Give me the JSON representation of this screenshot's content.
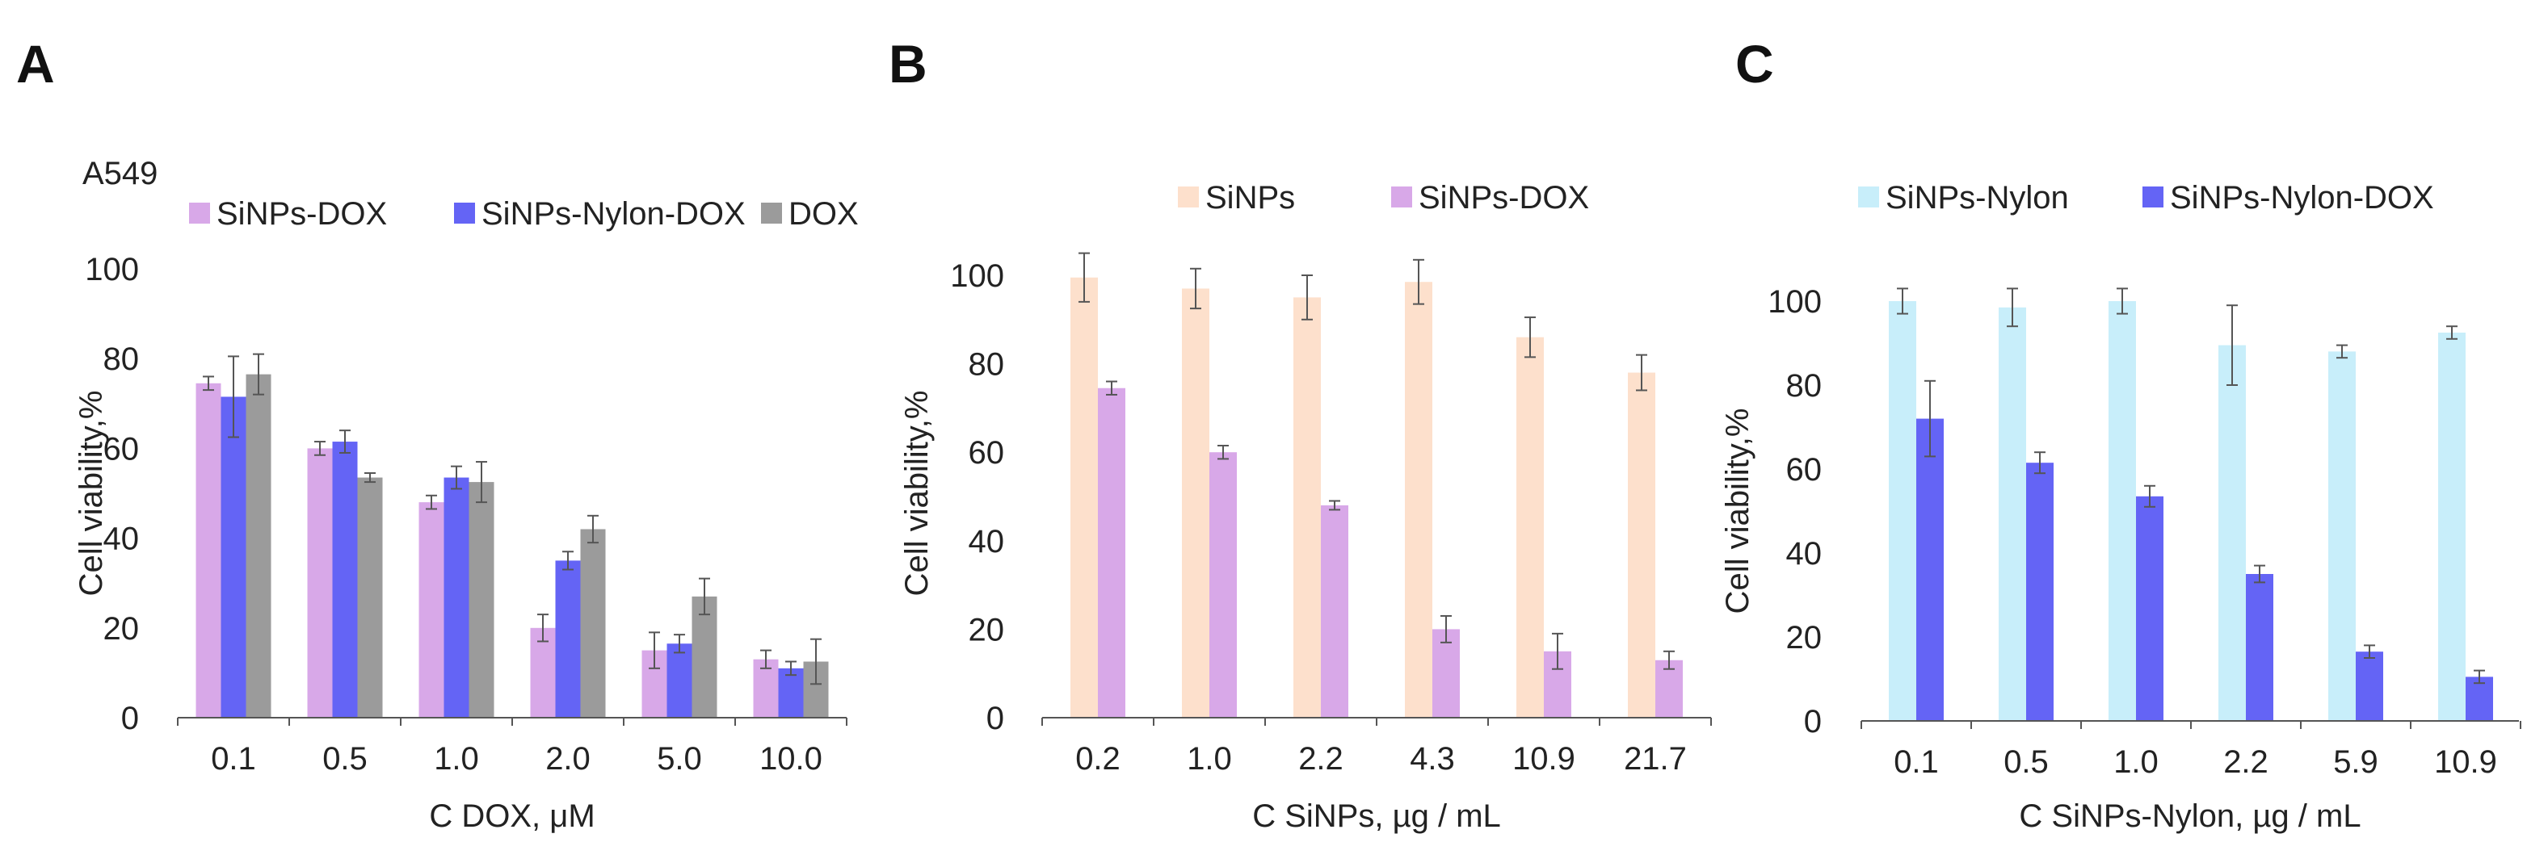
{
  "chart_data": [
    {
      "type": "bar",
      "panel_letter": "A",
      "annotation": "A549",
      "categories": [
        "0.1",
        "0.5",
        "1.0",
        "2.0",
        "5.0",
        "10.0"
      ],
      "series": [
        {
          "name": "SiNPs-DOX",
          "color": "#d8a8e8",
          "values": [
            74.5,
            60,
            48,
            20,
            15,
            13
          ],
          "errors": [
            1.5,
            1.5,
            1.5,
            3,
            4,
            2
          ]
        },
        {
          "name": "SiNPs-Nylon-DOX",
          "color": "#6464f5",
          "values": [
            71.5,
            61.5,
            53.5,
            35,
            16.5,
            11
          ],
          "errors": [
            9,
            2.5,
            2.5,
            2,
            2,
            1.5
          ]
        },
        {
          "name": "DOX",
          "color": "#9b9b9b",
          "values": [
            76.5,
            53.5,
            52.5,
            42,
            27,
            12.5
          ],
          "errors": [
            4.5,
            1,
            4.5,
            3,
            4,
            5
          ]
        }
      ],
      "ylabel": "Cell viability,%",
      "xlabel": "C DOX, μM",
      "ylim": [
        0,
        100
      ],
      "yticks": [
        "0",
        "20",
        "40",
        "60",
        "80",
        "100"
      ],
      "legend_position": "top"
    },
    {
      "type": "bar",
      "panel_letter": "B",
      "categories": [
        "0.2",
        "1.0",
        "2.2",
        "4.3",
        "10.9",
        "21.7"
      ],
      "series": [
        {
          "name": "SiNPs",
          "color": "#fde0cc",
          "values": [
            99.5,
            97,
            95,
            98.5,
            86,
            78
          ],
          "errors": [
            5.5,
            4.5,
            5,
            5,
            4.5,
            4
          ]
        },
        {
          "name": "SiNPs-DOX",
          "color": "#d8a8e8",
          "values": [
            74.5,
            60,
            48,
            20,
            15,
            13
          ],
          "errors": [
            1.5,
            1.5,
            1,
            3,
            4,
            2
          ]
        }
      ],
      "ylabel": "Cell viability,%",
      "xlabel": "C SiNPs, µg / mL",
      "ylim": [
        0,
        100
      ],
      "yticks": [
        "0",
        "20",
        "40",
        "60",
        "80",
        "100"
      ],
      "legend_position": "top"
    },
    {
      "type": "bar",
      "panel_letter": "C",
      "categories": [
        "0.1",
        "0.5",
        "1.0",
        "2.2",
        "5.9",
        "10.9"
      ],
      "series": [
        {
          "name": "SiNPs-Nylon",
          "color": "#c8eefa",
          "values": [
            100,
            98.5,
            100,
            89.5,
            88,
            92.5
          ],
          "errors": [
            3,
            4.5,
            3,
            9.5,
            1.5,
            1.5
          ]
        },
        {
          "name": "SiNPs-Nylon-DOX",
          "color": "#6464f5",
          "values": [
            72,
            61.5,
            53.5,
            35,
            16.5,
            10.5
          ],
          "errors": [
            9,
            2.5,
            2.5,
            2,
            1.5,
            1.5
          ]
        }
      ],
      "ylabel": "Cell viability,%",
      "xlabel": "C SiNPs-Nylon, µg / mL",
      "ylim": [
        0,
        100
      ],
      "yticks": [
        "0",
        "20",
        "40",
        "60",
        "80",
        "100"
      ],
      "legend_position": "top"
    }
  ]
}
